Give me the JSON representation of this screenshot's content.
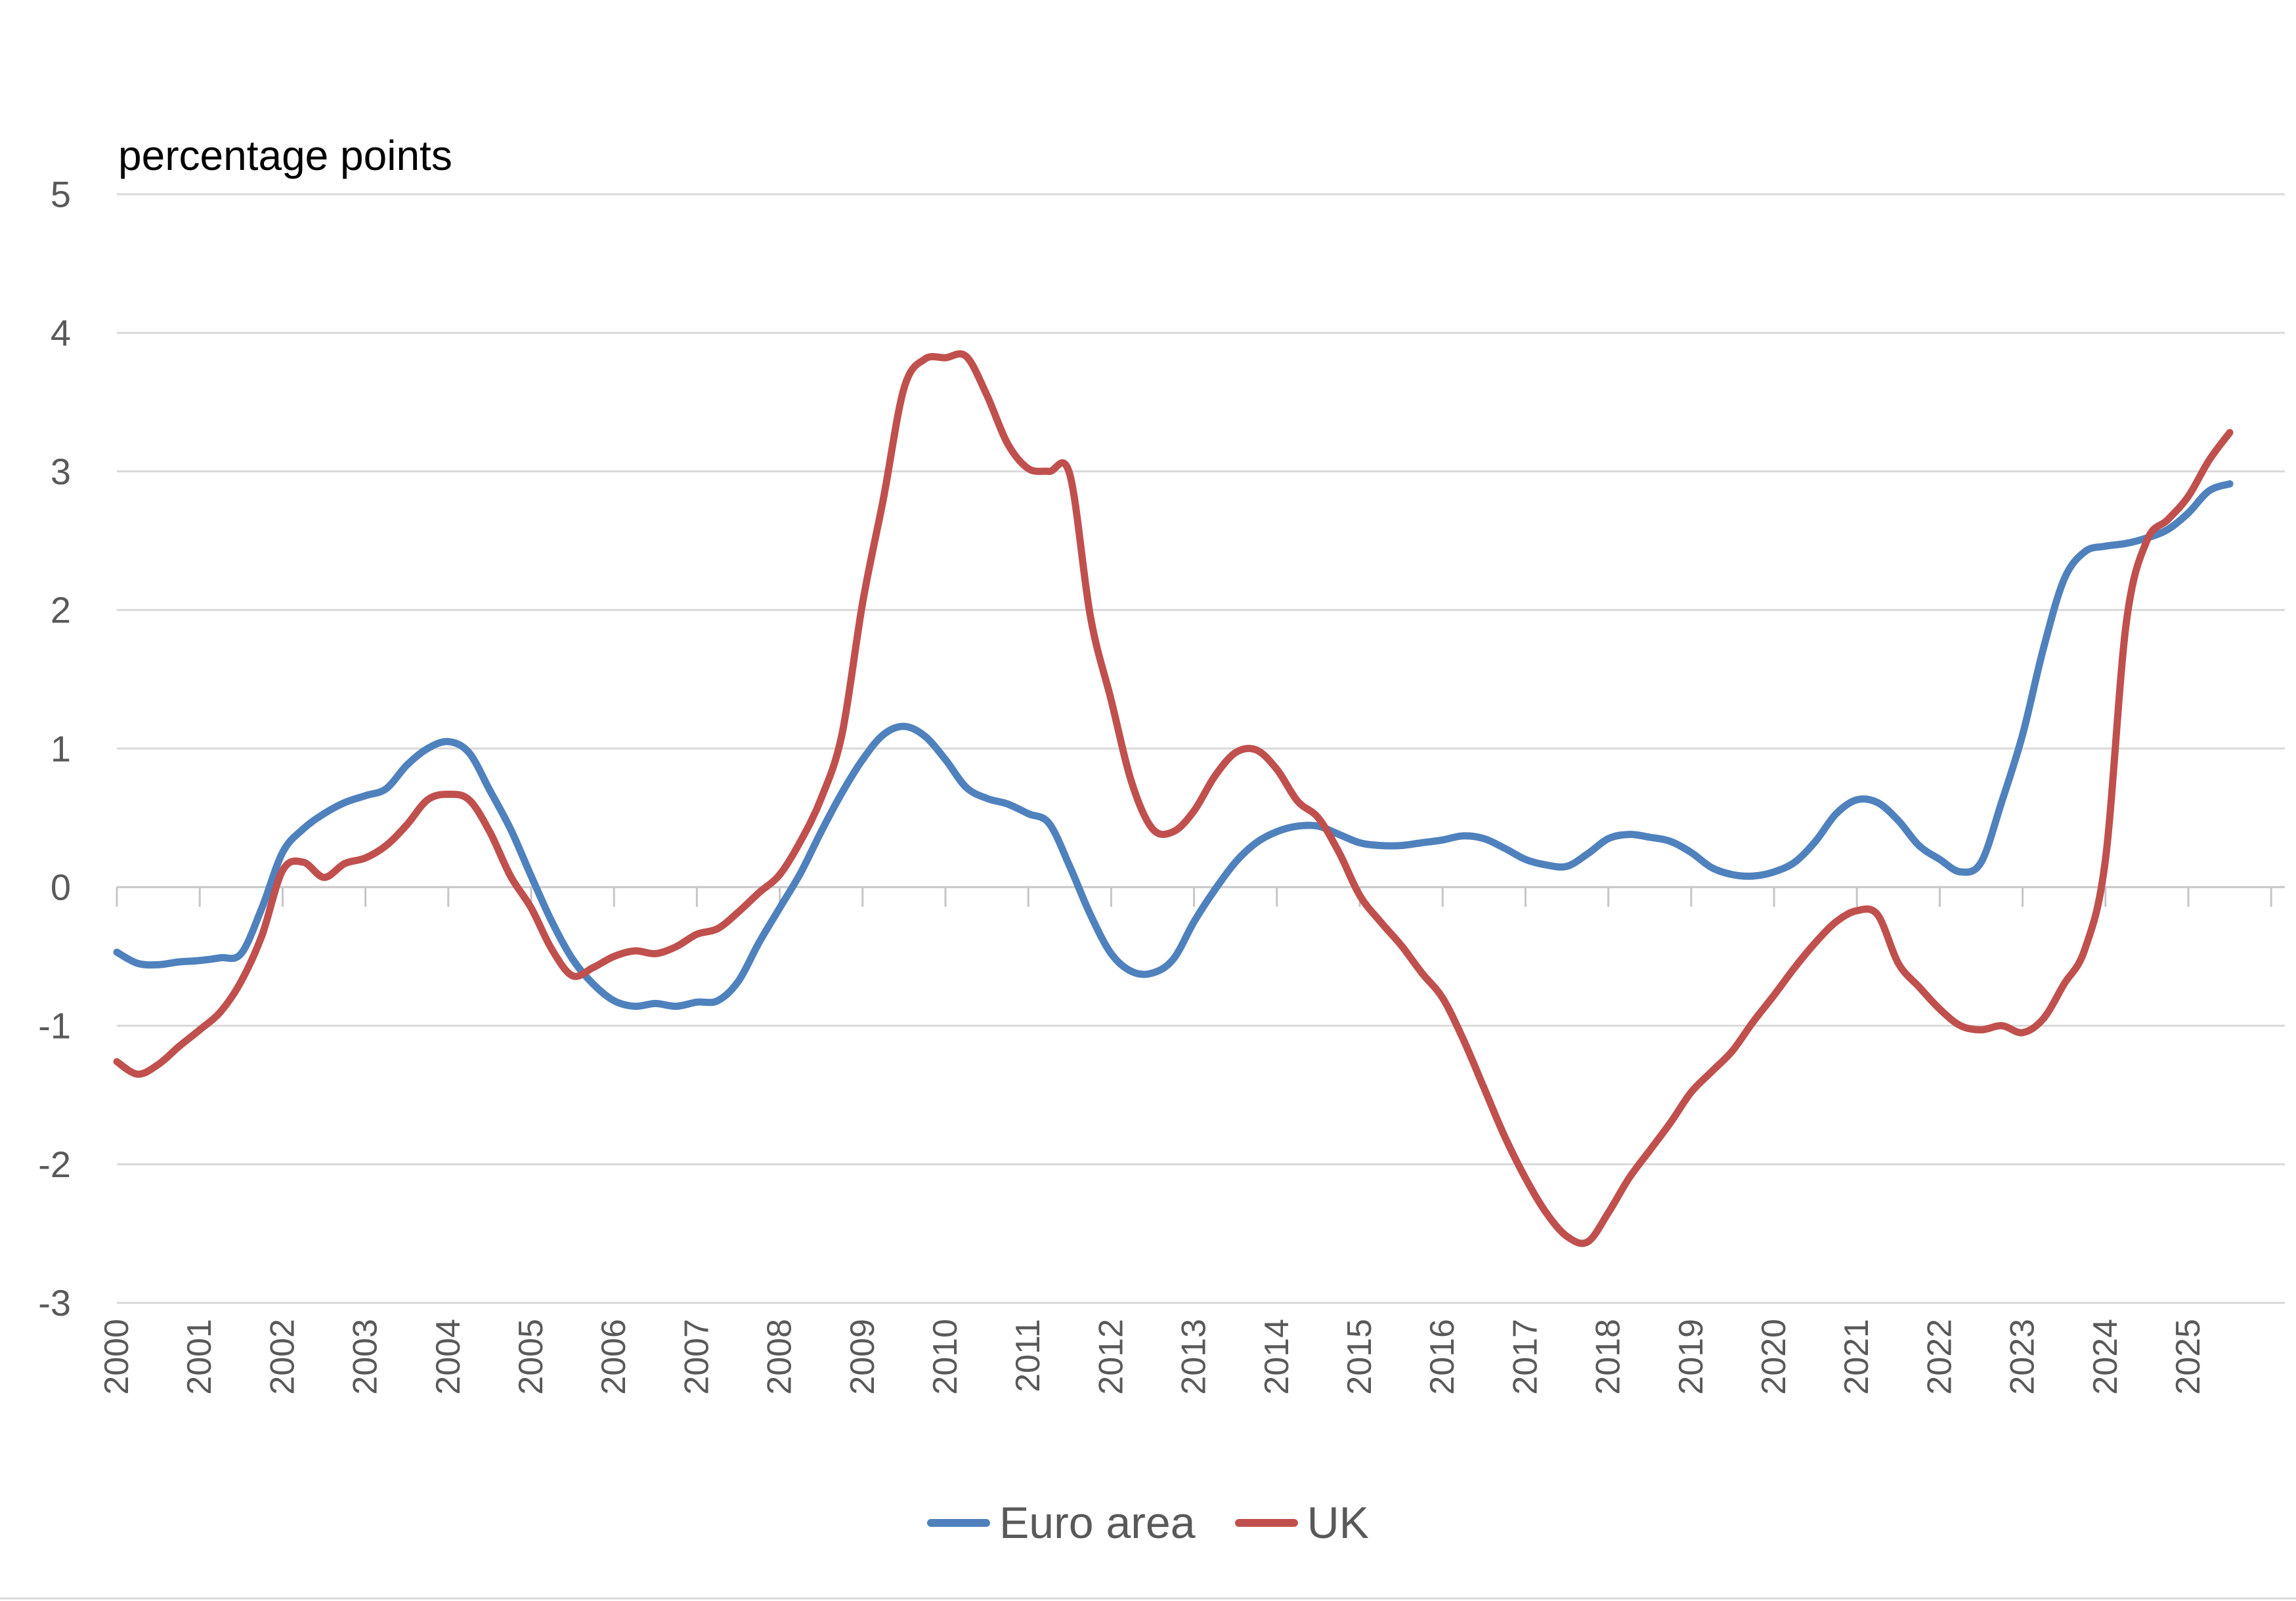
{
  "chart_title": "percentage points",
  "chart_data": {
    "type": "line",
    "title": "percentage points",
    "xlabel": "",
    "ylabel": "percentage points",
    "ylim": [
      -3,
      5
    ],
    "xlim": [
      1999.9,
      2026.2
    ],
    "grid": true,
    "legend_position": "bottom-center",
    "y_tick_labels": [
      "5",
      "4",
      "3",
      "2",
      "1",
      "0",
      "-1",
      "-2",
      "-3"
    ],
    "y_ticks": [
      5,
      4,
      3,
      2,
      1,
      0,
      -1,
      -2,
      -3
    ],
    "x_tick_labels": [
      "2000",
      "2001",
      "2002",
      "2003",
      "2004",
      "2005",
      "2006",
      "2007",
      "2008",
      "2009",
      "2010",
      "2011",
      "2012",
      "2013",
      "2014",
      "2015",
      "2016",
      "2017",
      "2018",
      "2019",
      "2020",
      "2021",
      "2022",
      "2023",
      "2024",
      "2025"
    ],
    "x_ticks": [
      2000,
      2001,
      2002,
      2003,
      2004,
      2005,
      2006,
      2007,
      2008,
      2009,
      2010,
      2011,
      2012,
      2013,
      2014,
      2015,
      2016,
      2017,
      2018,
      2019,
      2020,
      2021,
      2022,
      2023,
      2024,
      2025,
      2026
    ],
    "x": [
      2000.0,
      2000.25,
      2000.5,
      2000.75,
      2001.0,
      2001.25,
      2001.5,
      2001.75,
      2002.0,
      2002.25,
      2002.5,
      2002.75,
      2003.0,
      2003.25,
      2003.5,
      2003.75,
      2004.0,
      2004.25,
      2004.5,
      2004.75,
      2005.0,
      2005.25,
      2005.5,
      2005.75,
      2006.0,
      2006.25,
      2006.5,
      2006.75,
      2007.0,
      2007.25,
      2007.5,
      2007.75,
      2008.0,
      2008.25,
      2008.5,
      2008.75,
      2009.0,
      2009.25,
      2009.5,
      2009.75,
      2010.0,
      2010.25,
      2010.5,
      2010.75,
      2011.0,
      2011.25,
      2011.5,
      2011.75,
      2012.0,
      2012.25,
      2012.5,
      2012.75,
      2013.0,
      2013.25,
      2013.5,
      2013.75,
      2014.0,
      2014.25,
      2014.5,
      2014.75,
      2015.0,
      2015.25,
      2015.5,
      2015.75,
      2016.0,
      2016.25,
      2016.5,
      2016.75,
      2017.0,
      2017.25,
      2017.5,
      2017.75,
      2018.0,
      2018.25,
      2018.5,
      2018.75,
      2019.0,
      2019.25,
      2019.5,
      2019.75,
      2020.0,
      2020.25,
      2020.5,
      2020.75,
      2021.0,
      2021.25,
      2021.5,
      2021.75,
      2022.0,
      2022.25,
      2022.5,
      2022.75,
      2023.0,
      2023.25,
      2023.5,
      2023.75,
      2024.0,
      2024.25,
      2024.5,
      2024.75,
      2025.0,
      2025.25,
      2025.5
    ],
    "series": [
      {
        "name": "Euro area",
        "color": "#4F81BD",
        "values": [
          -0.47,
          -0.55,
          -0.56,
          -0.54,
          -0.53,
          -0.51,
          -0.48,
          -0.15,
          0.25,
          0.42,
          0.53,
          0.61,
          0.66,
          0.71,
          0.88,
          1.0,
          1.05,
          0.97,
          0.7,
          0.42,
          0.08,
          -0.25,
          -0.52,
          -0.7,
          -0.82,
          -0.86,
          -0.84,
          -0.86,
          -0.83,
          -0.82,
          -0.68,
          -0.4,
          -0.15,
          0.1,
          0.4,
          0.68,
          0.92,
          1.1,
          1.16,
          1.09,
          0.92,
          0.72,
          0.64,
          0.6,
          0.53,
          0.46,
          0.15,
          -0.2,
          -0.48,
          -0.61,
          -0.62,
          -0.52,
          -0.25,
          -0.02,
          0.18,
          0.32,
          0.4,
          0.44,
          0.44,
          0.38,
          0.32,
          0.3,
          0.3,
          0.32,
          0.34,
          0.37,
          0.35,
          0.28,
          0.2,
          0.16,
          0.15,
          0.24,
          0.35,
          0.38,
          0.36,
          0.33,
          0.25,
          0.14,
          0.09,
          0.08,
          0.11,
          0.18,
          0.33,
          0.53,
          0.63,
          0.61,
          0.48,
          0.3,
          0.2,
          0.11,
          0.18,
          0.62,
          1.1,
          1.72,
          2.22,
          2.42,
          2.46,
          2.48,
          2.52,
          2.58,
          2.7,
          2.86,
          2.91
        ]
      },
      {
        "name": "UK",
        "color": "#C0504D",
        "values": [
          -1.26,
          -1.35,
          -1.28,
          -1.15,
          -1.03,
          -0.9,
          -0.68,
          -0.35,
          0.12,
          0.18,
          0.07,
          0.17,
          0.21,
          0.3,
          0.45,
          0.63,
          0.67,
          0.63,
          0.4,
          0.08,
          -0.15,
          -0.45,
          -0.64,
          -0.58,
          -0.5,
          -0.46,
          -0.48,
          -0.43,
          -0.34,
          -0.3,
          -0.18,
          -0.04,
          0.09,
          0.33,
          0.64,
          1.1,
          2.05,
          2.8,
          3.6,
          3.81,
          3.82,
          3.83,
          3.55,
          3.2,
          3.02,
          3.0,
          2.98,
          1.95,
          1.35,
          0.75,
          0.42,
          0.4,
          0.55,
          0.8,
          0.97,
          0.99,
          0.85,
          0.62,
          0.5,
          0.25,
          -0.06,
          -0.25,
          -0.42,
          -0.62,
          -0.8,
          -1.1,
          -1.45,
          -1.8,
          -2.1,
          -2.35,
          -2.52,
          -2.56,
          -2.35,
          -2.1,
          -1.9,
          -1.7,
          -1.48,
          -1.33,
          -1.18,
          -0.97,
          -0.78,
          -0.58,
          -0.4,
          -0.25,
          -0.17,
          -0.2,
          -0.55,
          -0.72,
          -0.88,
          -1.0,
          -1.03,
          -1.0,
          -1.05,
          -0.95,
          -0.7,
          -0.45,
          0.2,
          1.9,
          2.5,
          2.65,
          2.82,
          3.08,
          3.28
        ]
      }
    ]
  },
  "legend": {
    "items": [
      {
        "label": "Euro area",
        "color": "#4F81BD"
      },
      {
        "label": "UK",
        "color": "#C0504D"
      }
    ]
  },
  "style": {
    "gridline_color": "#D9D9D9",
    "axis_color": "#C6C6C6",
    "tick_label_color": "#595959",
    "title_color": "#000000",
    "line_width": 11
  }
}
